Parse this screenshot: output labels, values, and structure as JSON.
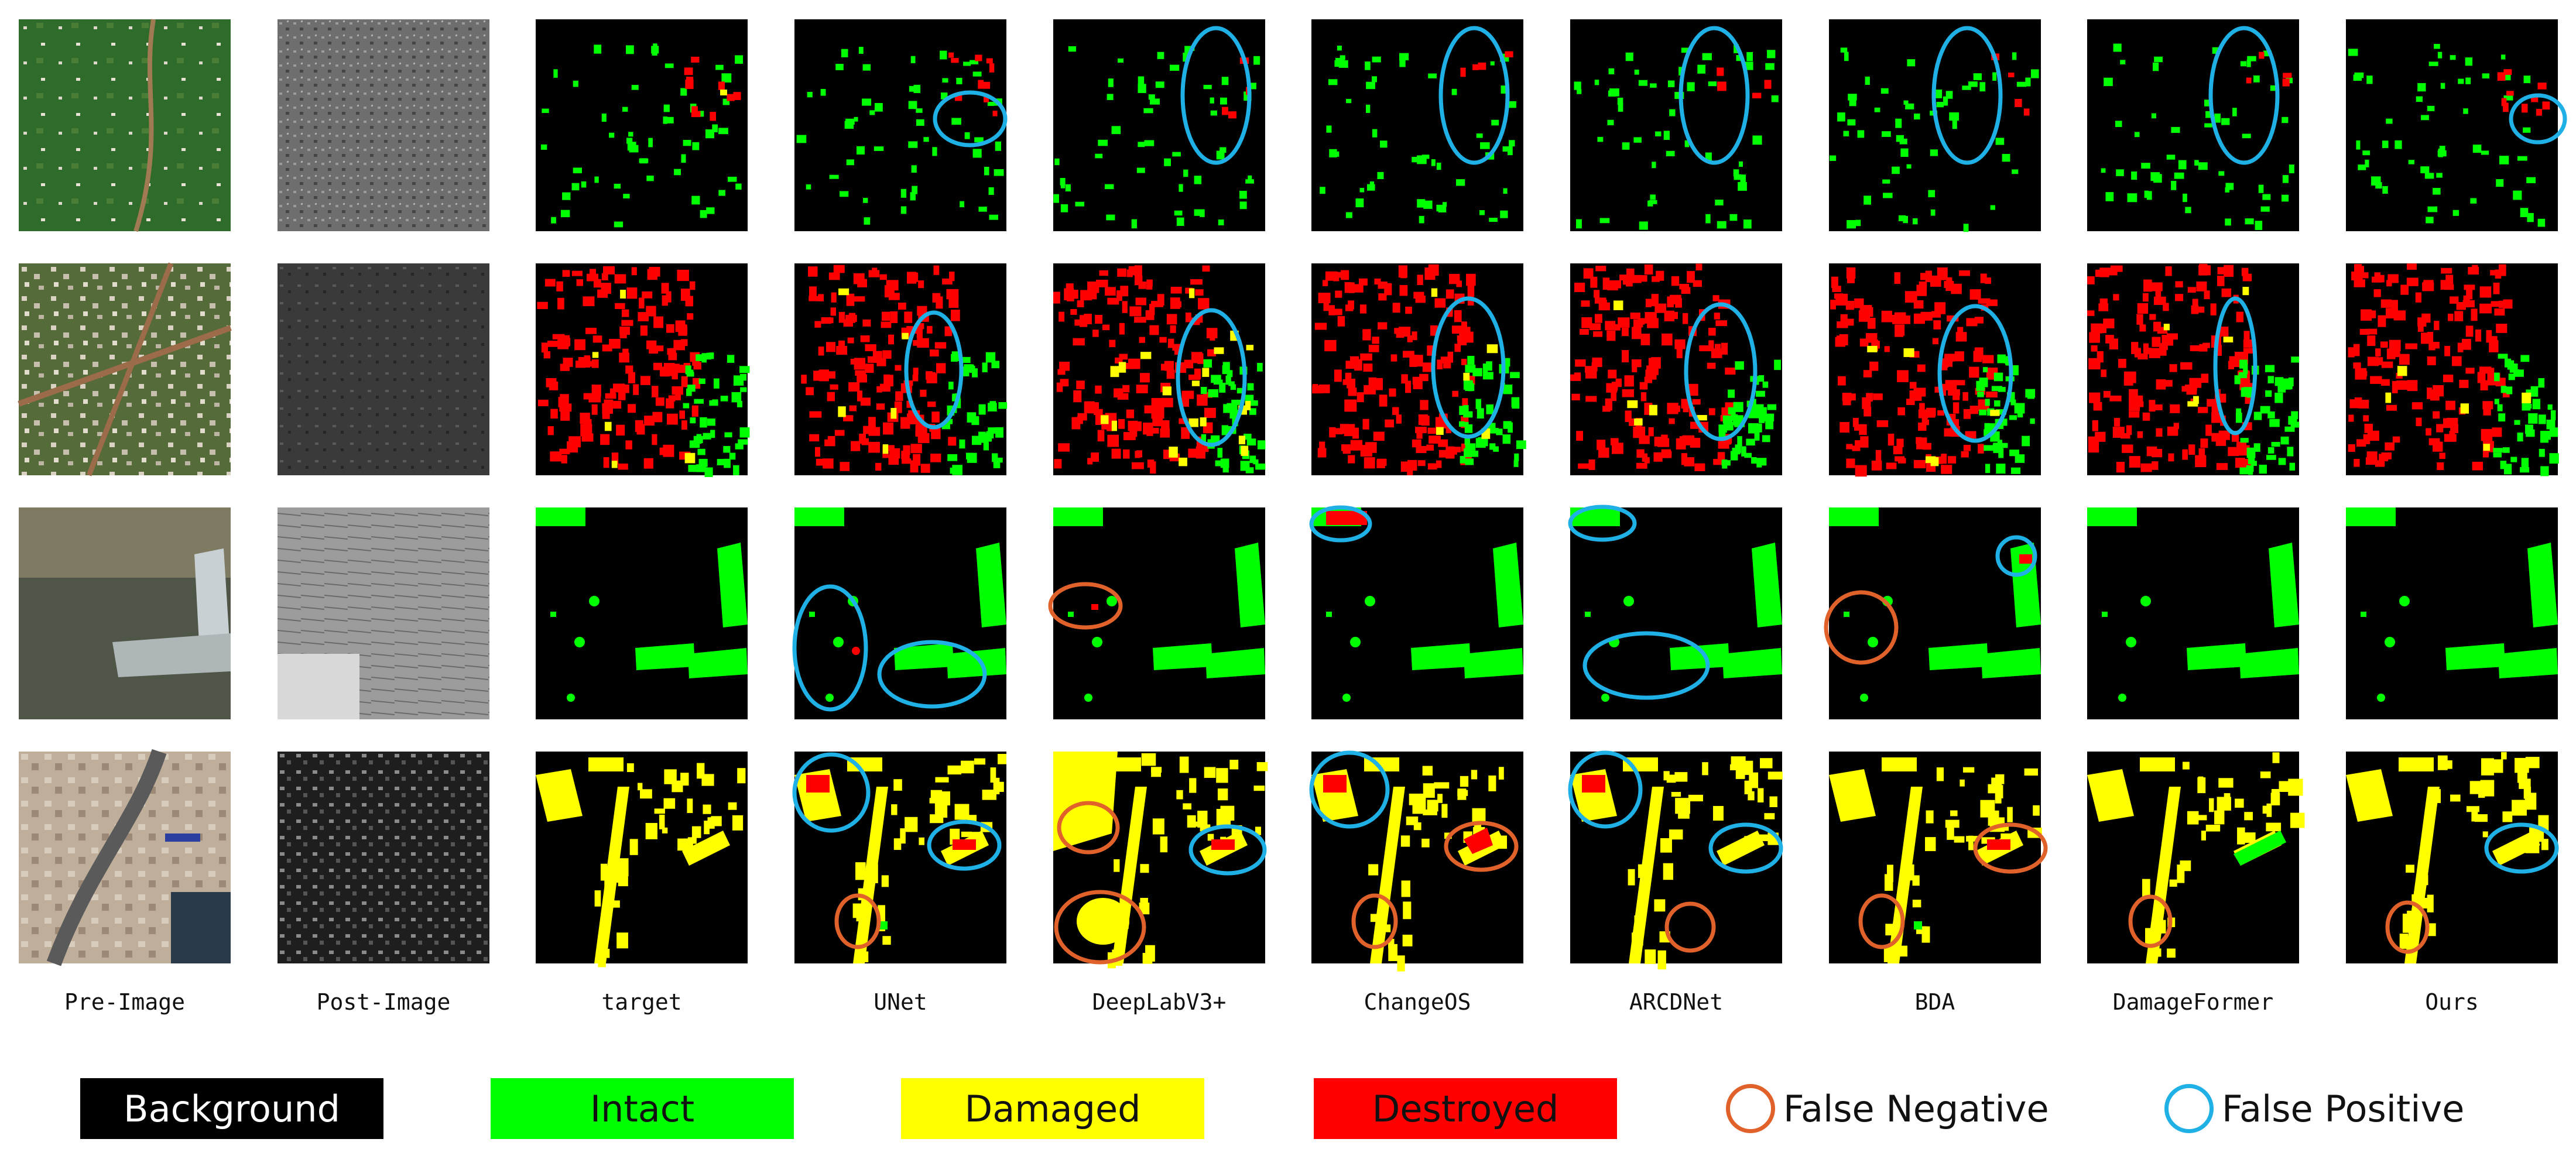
{
  "columns": [
    "Pre-Image",
    "Post-Image",
    "target",
    "UNet",
    "DeepLabV3+",
    "ChangeOS",
    "ARCDNet",
    "BDA",
    "DamageFormer",
    "Ours"
  ],
  "legend": {
    "background": "Background",
    "intact": "Intact",
    "damaged": "Damaged",
    "destroyed": "Destroyed",
    "false_negative": "False Negative",
    "false_positive": "False Positive"
  },
  "colors": {
    "background": "#000000",
    "intact": "#00ff00",
    "damaged": "#ffff00",
    "destroyed": "#ff0000",
    "false_negative": "#e0622a",
    "false_positive": "#1fb0e6"
  }
}
